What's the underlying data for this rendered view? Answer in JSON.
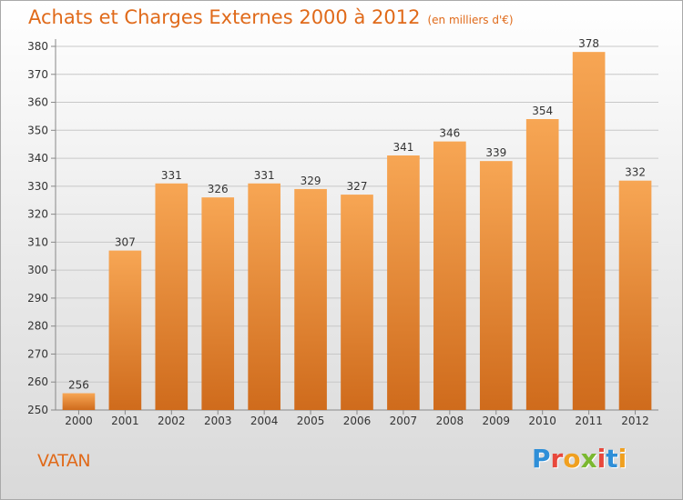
{
  "header": {
    "title": "Achats et Charges Externes 2000 à 2012",
    "subtitle": "(en milliers d'€)"
  },
  "footer": {
    "commune": "VATAN",
    "logo_letters": [
      "P",
      "r",
      "o",
      "x",
      "i",
      "t",
      "i"
    ],
    "logo_colors": [
      "#2f8fd8",
      "#e8483c",
      "#f0a020",
      "#7ab830",
      "#e8483c",
      "#2f8fd8",
      "#f0a020"
    ]
  },
  "chart_data": {
    "type": "bar",
    "title": "Achats et Charges Externes 2000 à 2012",
    "subtitle": "(en milliers d'€)",
    "categories": [
      "2000",
      "2001",
      "2002",
      "2003",
      "2004",
      "2005",
      "2006",
      "2007",
      "2008",
      "2009",
      "2010",
      "2011",
      "2012"
    ],
    "values": [
      256,
      307,
      331,
      326,
      331,
      329,
      327,
      341,
      346,
      339,
      354,
      378,
      332
    ],
    "ylim": [
      250,
      380
    ],
    "yticks": [
      250,
      260,
      270,
      280,
      290,
      300,
      310,
      320,
      330,
      340,
      350,
      360,
      370,
      380
    ],
    "xlabel": "",
    "ylabel": "",
    "grid": true,
    "bar_color_top": "#f7a654",
    "bar_color_bottom": "#cf6b1c"
  }
}
